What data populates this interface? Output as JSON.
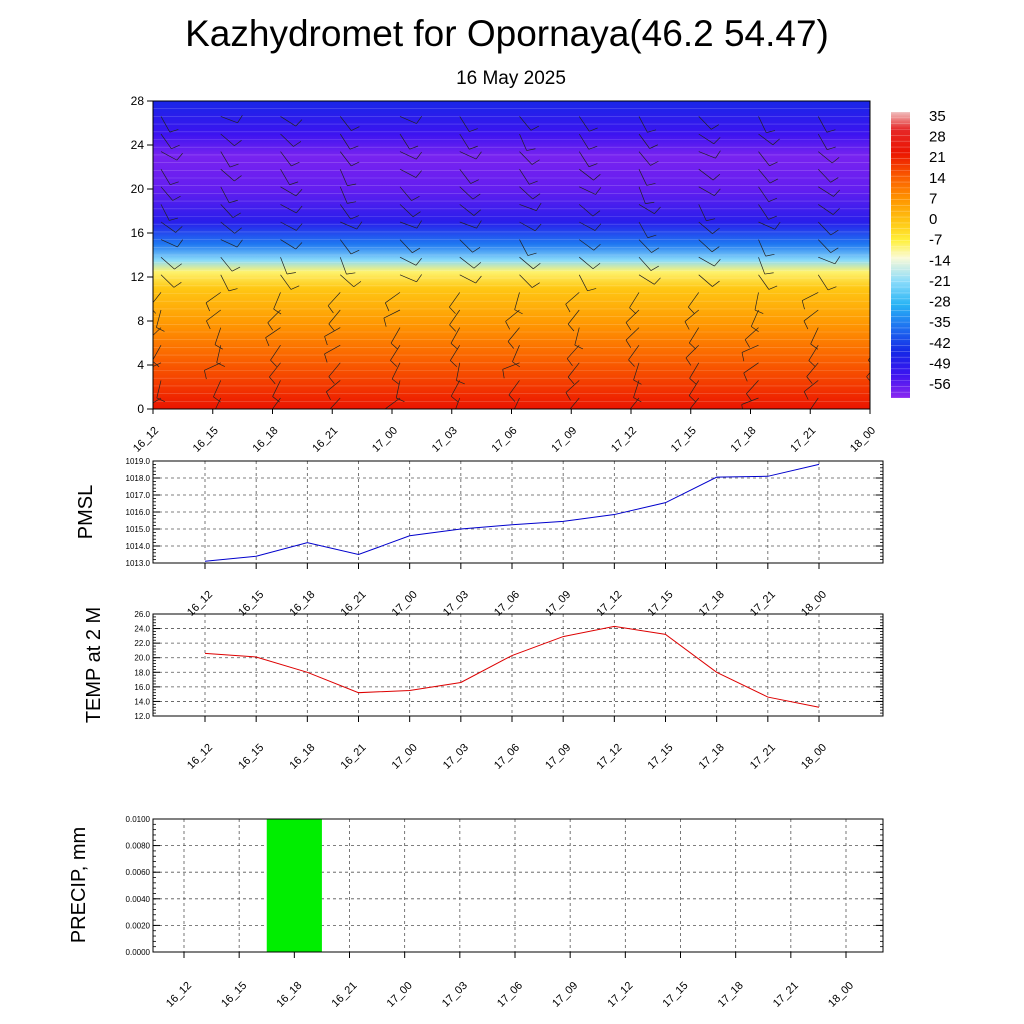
{
  "title": "Kazhydromet for Opornaya(46.2 54.47)",
  "subtitle": "16 May 2025",
  "time_labels": [
    "16_12",
    "16_15",
    "16_18",
    "16_21",
    "17_00",
    "17_03",
    "17_06",
    "17_09",
    "17_12",
    "17_15",
    "17_18",
    "17_21",
    "18_00"
  ],
  "colors": {
    "pmsl_line": "#0000cc",
    "temp_line": "#dd0000",
    "precip_bar": "#00ee00",
    "grid": "#555555"
  },
  "chart_data": [
    {
      "type": "heatmap",
      "panel": "vertical-cross-section",
      "x": [
        "16_12",
        "16_15",
        "16_18",
        "16_21",
        "17_00",
        "17_03",
        "17_06",
        "17_09",
        "17_12",
        "17_15",
        "17_18",
        "17_21",
        "18_00"
      ],
      "y_ticks": [
        "0",
        "4",
        "8",
        "12",
        "16",
        "20",
        "24",
        "28"
      ],
      "ylim": [
        0,
        28
      ],
      "colorbar_labels": [
        "35",
        "28",
        "21",
        "14",
        "7",
        "0",
        "-7",
        "-14",
        "-21",
        "-28",
        "-35",
        "-42",
        "-49",
        "-56"
      ],
      "colorbar_range": [
        -60,
        38
      ],
      "temperature_profile": [
        {
          "level": 0,
          "value": 24
        },
        {
          "level": 2,
          "value": 20
        },
        {
          "level": 5,
          "value": 14
        },
        {
          "level": 8,
          "value": 7
        },
        {
          "level": 11,
          "value": 0
        },
        {
          "level": 12.5,
          "value": -8
        },
        {
          "level": 13.5,
          "value": -20
        },
        {
          "level": 15,
          "value": -35
        },
        {
          "level": 17,
          "value": -48
        },
        {
          "level": 20,
          "value": -56
        },
        {
          "level": 23,
          "value": -58
        },
        {
          "level": 25,
          "value": -52
        },
        {
          "level": 28,
          "value": -45
        }
      ],
      "wind_barbs": true,
      "grid": false
    },
    {
      "type": "line",
      "panel": "pmsl",
      "ylabel": "PMSL",
      "x": [
        "16_12",
        "16_15",
        "16_18",
        "16_21",
        "17_00",
        "17_03",
        "17_06",
        "17_09",
        "17_12",
        "17_15",
        "17_18",
        "17_21",
        "18_00"
      ],
      "y_ticks": [
        "1013.0",
        "1014.0",
        "1015.0",
        "1016.0",
        "1017.0",
        "1018.0",
        "1019.0"
      ],
      "ylim": [
        1013.0,
        1019.0
      ],
      "values": [
        1013.1,
        1013.4,
        1014.2,
        1013.5,
        1014.6,
        1015.0,
        1015.25,
        1015.45,
        1015.85,
        1016.55,
        1018.05,
        1018.1,
        1018.8
      ],
      "grid": true
    },
    {
      "type": "line",
      "panel": "temp2m",
      "ylabel": "TEMP at 2 M",
      "x": [
        "16_12",
        "16_15",
        "16_18",
        "16_21",
        "17_00",
        "17_03",
        "17_06",
        "17_09",
        "17_12",
        "17_15",
        "17_18",
        "17_21",
        "18_00"
      ],
      "y_ticks": [
        "12.0",
        "14.0",
        "16.0",
        "18.0",
        "20.0",
        "22.0",
        "24.0",
        "26.0"
      ],
      "ylim": [
        12.0,
        26.0
      ],
      "values": [
        20.6,
        20.1,
        18.0,
        15.2,
        15.5,
        16.6,
        20.3,
        22.9,
        24.3,
        23.2,
        18.0,
        14.6,
        13.2
      ],
      "grid": true
    },
    {
      "type": "bar",
      "panel": "precip",
      "ylabel": "PRECIP, mm",
      "x": [
        "16_12",
        "16_15",
        "16_18",
        "16_21",
        "17_00",
        "17_03",
        "17_06",
        "17_09",
        "17_12",
        "17_15",
        "17_18",
        "17_21",
        "18_00"
      ],
      "y_ticks": [
        "0.0000",
        "0.0020",
        "0.0040",
        "0.0060",
        "0.0080",
        "0.0100"
      ],
      "ylim": [
        0.0,
        0.01
      ],
      "values": [
        0,
        0,
        0.01,
        0,
        0,
        0,
        0,
        0,
        0,
        0,
        0,
        0,
        0
      ],
      "grid": true
    }
  ]
}
